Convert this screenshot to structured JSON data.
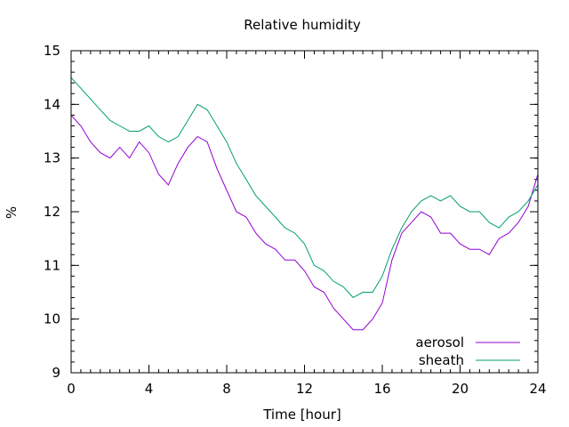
{
  "chart_data": {
    "type": "line",
    "title": "Relative humidity",
    "xlabel": "Time [hour]",
    "ylabel": "%",
    "xlim": [
      0,
      24
    ],
    "ylim": [
      9,
      15
    ],
    "xticks": [
      0,
      4,
      8,
      12,
      16,
      20,
      24
    ],
    "yticks": [
      9,
      10,
      11,
      12,
      13,
      14,
      15
    ],
    "x_minor_step": 0.5,
    "y_minor_step": 0.2,
    "grid": false,
    "legend_position": "bottom-right",
    "series": [
      {
        "name": "aerosol",
        "color": "#9400d3",
        "x": [
          0,
          0.5,
          1,
          1.5,
          2,
          2.5,
          3,
          3.5,
          4,
          4.5,
          5,
          5.5,
          6,
          6.5,
          7,
          7.5,
          8,
          8.5,
          9,
          9.5,
          10,
          10.5,
          11,
          11.5,
          12,
          12.5,
          13,
          13.5,
          14,
          14.5,
          15,
          15.5,
          16,
          16.5,
          17,
          17.5,
          18,
          18.5,
          19,
          19.5,
          20,
          20.5,
          21,
          21.5,
          22,
          22.5,
          23,
          23.5,
          24
        ],
        "y": [
          13.8,
          13.6,
          13.3,
          13.1,
          13.0,
          13.2,
          13.0,
          13.3,
          13.1,
          12.7,
          12.5,
          12.9,
          13.2,
          13.4,
          13.3,
          12.8,
          12.4,
          12.0,
          11.9,
          11.6,
          11.4,
          11.3,
          11.1,
          11.1,
          10.9,
          10.6,
          10.5,
          10.2,
          10.0,
          9.8,
          9.8,
          10.0,
          10.3,
          11.1,
          11.6,
          11.8,
          12.0,
          11.9,
          11.6,
          11.6,
          11.4,
          11.3,
          11.3,
          11.2,
          11.5,
          11.6,
          11.8,
          12.1,
          12.7
        ]
      },
      {
        "name": "sheath",
        "color": "#009e73",
        "x": [
          0,
          0.5,
          1,
          1.5,
          2,
          2.5,
          3,
          3.5,
          4,
          4.5,
          5,
          5.5,
          6,
          6.5,
          7,
          7.5,
          8,
          8.5,
          9,
          9.5,
          10,
          10.5,
          11,
          11.5,
          12,
          12.5,
          13,
          13.5,
          14,
          14.5,
          15,
          15.5,
          16,
          16.5,
          17,
          17.5,
          18,
          18.5,
          19,
          19.5,
          20,
          20.5,
          21,
          21.5,
          22,
          22.5,
          23,
          23.5,
          24
        ],
        "y": [
          14.5,
          14.3,
          14.1,
          13.9,
          13.7,
          13.6,
          13.5,
          13.5,
          13.6,
          13.4,
          13.3,
          13.4,
          13.7,
          14.0,
          13.9,
          13.6,
          13.3,
          12.9,
          12.6,
          12.3,
          12.1,
          11.9,
          11.7,
          11.6,
          11.4,
          11.0,
          10.9,
          10.7,
          10.6,
          10.4,
          10.5,
          10.5,
          10.8,
          11.3,
          11.7,
          12.0,
          12.2,
          12.3,
          12.2,
          12.3,
          12.1,
          12.0,
          12.0,
          11.8,
          11.7,
          11.9,
          12.0,
          12.2,
          12.5
        ]
      }
    ]
  }
}
